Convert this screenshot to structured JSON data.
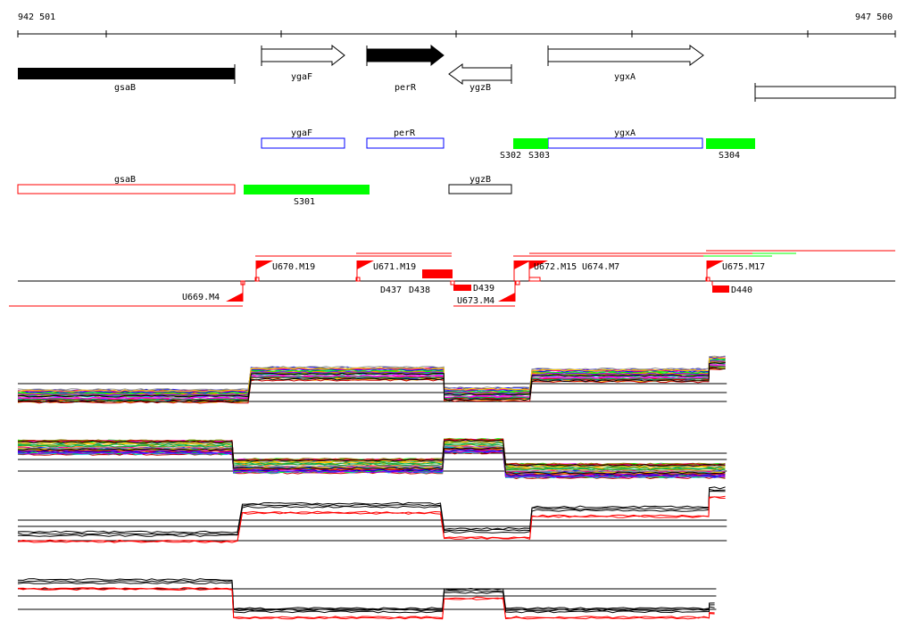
{
  "ruler": {
    "start_label": "942 501",
    "end_label": "947 500",
    "start_bp": 942501,
    "end_bp": 947500
  },
  "genes": [
    {
      "name": "gsaB",
      "strand": "-",
      "style": "filled"
    },
    {
      "name": "ygaF",
      "strand": "+",
      "style": "open"
    },
    {
      "name": "perR",
      "strand": "+",
      "style": "filled"
    },
    {
      "name": "ygzB",
      "strand": "-",
      "style": "open"
    },
    {
      "name": "ygxA",
      "strand": "+",
      "style": "open"
    }
  ],
  "annot_plus": [
    {
      "name": "ygaF"
    },
    {
      "name": "perR"
    },
    {
      "name": "ygxA"
    }
  ],
  "annot_minus": [
    {
      "name": "gsaB"
    },
    {
      "name": "ygzB"
    }
  ],
  "segments": [
    "S302",
    "S303",
    "S304",
    "S301"
  ],
  "tss": [
    "U670.M19",
    "U671.M19",
    "U672.M15",
    "U674.M7",
    "U675.M17",
    "U669.M4",
    "U673.M4"
  ],
  "terminators": [
    "D437",
    "D438",
    "D439",
    "D440"
  ],
  "colors": {
    "segment": "#00ff00",
    "tss": "#ff0000",
    "annot_plus": "#0000ff",
    "annot_minus": "#ff0000"
  },
  "profiles": [
    {
      "name": "plus-strand-all",
      "multicolor": true,
      "segs": [
        [
          942501,
          943830,
          1.5
        ],
        [
          943830,
          944930,
          4.2
        ],
        [
          944930,
          945430,
          1.7
        ],
        [
          945430,
          946440,
          4.0
        ],
        [
          946440,
          946540,
          5.5
        ]
      ]
    },
    {
      "name": "minus-strand-all",
      "multicolor": true,
      "segs": [
        [
          942501,
          943730,
          4.6
        ],
        [
          943730,
          944930,
          1.9
        ],
        [
          944930,
          945280,
          4.8
        ],
        [
          945280,
          946540,
          1.2
        ]
      ]
    },
    {
      "name": "plus-strand-selected",
      "multicolor": false,
      "segs": [
        [
          942501,
          943780,
          1.0
        ],
        [
          943780,
          944930,
          4.3
        ],
        [
          944930,
          945430,
          1.4
        ],
        [
          945430,
          946440,
          3.9
        ],
        [
          946440,
          946540,
          6.1
        ]
      ]
    },
    {
      "name": "minus-strand-selected",
      "multicolor": false,
      "segs": [
        [
          942501,
          943730,
          5.0
        ],
        [
          943730,
          944930,
          0.8
        ],
        [
          944930,
          945280,
          3.6
        ],
        [
          945280,
          946440,
          0.8
        ],
        [
          946440,
          946480,
          1.5
        ]
      ]
    }
  ]
}
